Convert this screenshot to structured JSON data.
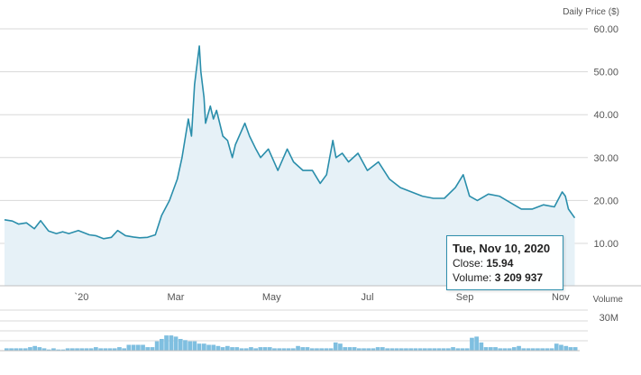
{
  "chart_data": {
    "type": "line",
    "unit_label": "Daily Price ($)",
    "volume_label": "Volume",
    "volume_tick": "30M",
    "y_ticks": [
      "60.00",
      "50.00",
      "40.00",
      "30.00",
      "20.00",
      "10.00"
    ],
    "ylim": [
      0,
      62
    ],
    "x_ticks": [
      {
        "label": "`20",
        "date": "2020-01-01"
      },
      {
        "label": "Mar",
        "date": "2020-03-01"
      },
      {
        "label": "May",
        "date": "2020-05-01"
      },
      {
        "label": "Jul",
        "date": "2020-07-01"
      },
      {
        "label": "Sep",
        "date": "2020-09-01"
      },
      {
        "label": "Nov",
        "date": "2020-11-01"
      }
    ],
    "xlim": [
      "2019-11-13",
      "2020-11-12"
    ],
    "series": [
      {
        "x": [
          "2019-11-13",
          "2019-11-18",
          "2019-11-22",
          "2019-11-27",
          "2019-12-02",
          "2019-12-06",
          "2019-12-11",
          "2019-12-16",
          "2019-12-20",
          "2019-12-24",
          "2019-12-30",
          "2020-01-06",
          "2020-01-10",
          "2020-01-15",
          "2020-01-20",
          "2020-01-24",
          "2020-01-29",
          "2020-02-03",
          "2020-02-07",
          "2020-02-12",
          "2020-02-17",
          "2020-02-21",
          "2020-02-26",
          "2020-03-02",
          "2020-03-05",
          "2020-03-09",
          "2020-03-11",
          "2020-03-13",
          "2020-03-16",
          "2020-03-17",
          "2020-03-19",
          "2020-03-20",
          "2020-03-23",
          "2020-03-25",
          "2020-03-27",
          "2020-03-31",
          "2020-04-03",
          "2020-04-06",
          "2020-04-08",
          "2020-04-14",
          "2020-04-17",
          "2020-04-21",
          "2020-04-24",
          "2020-04-29",
          "2020-05-05",
          "2020-05-11",
          "2020-05-15",
          "2020-05-21",
          "2020-05-27",
          "2020-06-01",
          "2020-06-05",
          "2020-06-09",
          "2020-06-11",
          "2020-06-15",
          "2020-06-19",
          "2020-06-25",
          "2020-07-01",
          "2020-07-08",
          "2020-07-15",
          "2020-07-22",
          "2020-07-29",
          "2020-08-05",
          "2020-08-12",
          "2020-08-19",
          "2020-08-26",
          "2020-08-31",
          "2020-09-04",
          "2020-09-09",
          "2020-09-16",
          "2020-09-23",
          "2020-09-30",
          "2020-10-07",
          "2020-10-14",
          "2020-10-21",
          "2020-10-28",
          "2020-11-02",
          "2020-11-04",
          "2020-11-06",
          "2020-11-10"
        ],
        "values": [
          15.5,
          15.2,
          14.5,
          14.8,
          13.4,
          15.3,
          12.9,
          12.3,
          12.7,
          12.3,
          13.0,
          12.0,
          11.8,
          11.1,
          11.4,
          13.0,
          11.8,
          11.5,
          11.3,
          11.4,
          12.0,
          16.5,
          20.0,
          25.0,
          30.0,
          39.0,
          35.0,
          47.0,
          56.0,
          50.0,
          44.0,
          38.0,
          42.0,
          39.0,
          41.0,
          35.0,
          34.0,
          30.0,
          33.0,
          38.0,
          35.0,
          32.0,
          30.0,
          32.0,
          27.0,
          32.0,
          29.0,
          27.0,
          27.0,
          24.0,
          26.0,
          34.0,
          30.0,
          31.0,
          29.0,
          31.0,
          27.0,
          29.0,
          25.0,
          23.0,
          22.0,
          21.0,
          20.5,
          20.5,
          23.0,
          26.0,
          21.0,
          20.0,
          21.5,
          21.0,
          19.5,
          18.0,
          18.0,
          19.0,
          18.5,
          22.0,
          21.0,
          18.0,
          15.94
        ]
      }
    ],
    "volume": {
      "scale_max": 30000000,
      "values": [
        2,
        2,
        2,
        2,
        2,
        3,
        4,
        3,
        2,
        1,
        2,
        1,
        1,
        2,
        2,
        2,
        2,
        2,
        2,
        3,
        2,
        2,
        2,
        2,
        3,
        2,
        5,
        5,
        5,
        5,
        3,
        3,
        8,
        10,
        13,
        13,
        12,
        10,
        9,
        8,
        8,
        6,
        6,
        5,
        5,
        4,
        3,
        4,
        3,
        3,
        2,
        2,
        3,
        2,
        3,
        3,
        3,
        2,
        2,
        2,
        2,
        2,
        4,
        3,
        3,
        2,
        2,
        2,
        2,
        2,
        7,
        6,
        3,
        3,
        3,
        2,
        2,
        2,
        2,
        3,
        3,
        2,
        2,
        2,
        2,
        2,
        2,
        2,
        2,
        2,
        2,
        2,
        2,
        2,
        2,
        3,
        2,
        2,
        2,
        11,
        12,
        7,
        3,
        3,
        3,
        2,
        2,
        2,
        3,
        4,
        2,
        2,
        2,
        2,
        2,
        2,
        2,
        6,
        5,
        4,
        3,
        3
      ]
    },
    "tooltip": {
      "date": "Tue, Nov 10, 2020",
      "close_label": "Close:",
      "close_value": "15.94",
      "volume_label": "Volume:",
      "volume_value": "3 209 937"
    },
    "colors": {
      "line": "#2a8eab",
      "area": "#e6f1f7",
      "volume": "#7fbfe0",
      "grid": "#d8d8d8"
    }
  }
}
